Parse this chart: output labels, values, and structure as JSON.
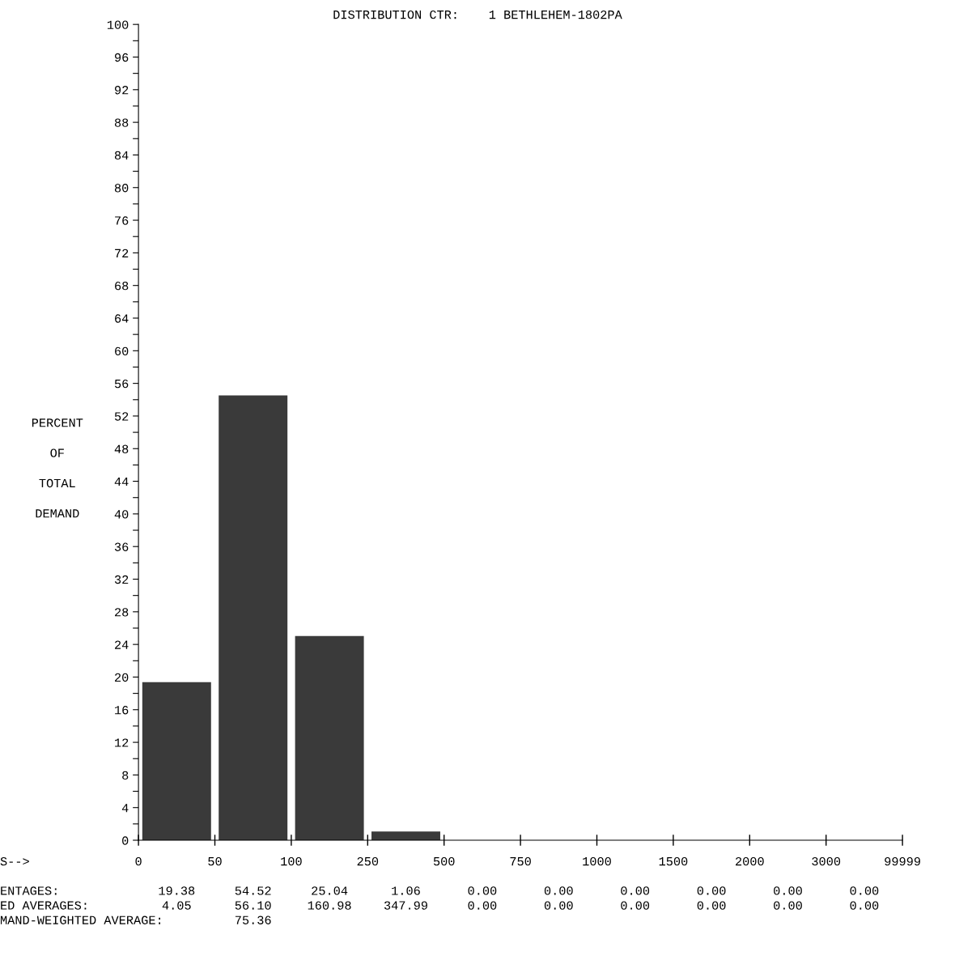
{
  "chart_data": {
    "type": "bar",
    "title": "DISTRIBUTION CTR:    1 BETHLEHEM-1802PA",
    "ylabel": "PERCENT\n\nOF\n\nTOTAL\n\nDEMAND",
    "categories": [
      null,
      null,
      null,
      null,
      null,
      null,
      null,
      null,
      null,
      null
    ],
    "values": [
      19.38,
      54.52,
      25.04,
      1.06,
      0,
      0,
      0,
      0,
      0,
      0
    ],
    "value_labels": [
      "19.38",
      "54.52",
      "25.04",
      "1.06",
      "0.00",
      "0.00",
      "0.00",
      "0.00",
      "0.00",
      "0.00"
    ],
    "color": "#3a3a3a",
    "ylim": [
      0,
      100
    ],
    "yticks": [
      0,
      {
        "value": 2,
        "label": null
      },
      4,
      {
        "value": 6,
        "label": null
      },
      8,
      {
        "value": 10,
        "label": null
      },
      12,
      {
        "value": 14,
        "label": null
      },
      16,
      {
        "value": 18,
        "label": null
      },
      20,
      {
        "value": 22,
        "label": null
      },
      24,
      {
        "value": 26,
        "label": null
      },
      28,
      {
        "value": 30,
        "label": null
      },
      32,
      {
        "value": 34,
        "label": null
      },
      36,
      {
        "value": 38,
        "label": null
      },
      40,
      {
        "value": 42,
        "label": null
      },
      44,
      {
        "value": 46,
        "label": null
      },
      48,
      {
        "value": 50,
        "label": null
      },
      52,
      {
        "value": 54,
        "label": null
      },
      56,
      {
        "value": 58,
        "label": null
      },
      60,
      {
        "value": 62,
        "label": null
      },
      64,
      {
        "value": 66,
        "label": null
      },
      68,
      {
        "value": 70,
        "label": null
      },
      72,
      {
        "value": 74,
        "label": null
      },
      76,
      {
        "value": 78,
        "label": null
      },
      80,
      {
        "value": 82,
        "label": null
      },
      84,
      {
        "value": 86,
        "label": null
      },
      88,
      {
        "value": 90,
        "label": null
      },
      92,
      {
        "value": 94,
        "label": null
      },
      96,
      {
        "value": 98,
        "label": null
      },
      100
    ],
    "annotations": [
      "S-->",
      "0",
      "50",
      "100",
      "250",
      "500",
      "750",
      "1000",
      "1500",
      "2000",
      "3000",
      "99999",
      "ENTAGES:",
      "ED AVERAGES:",
      "4.05",
      "56.10",
      "160.98",
      "347.99",
      "0.00",
      "0.00",
      "0.00",
      "0.00",
      "0.00",
      "0.00",
      "MAND-WEIGHTED AVERAGE:",
      "75.36"
    ],
    "grid": false
  }
}
